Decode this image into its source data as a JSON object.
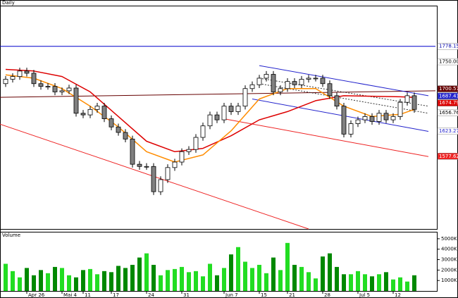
{
  "chart_data": [
    {
      "type": "candlestick",
      "title": "Daily",
      "ylim": [
        1445,
        1851
      ],
      "up_color": "#ffffff",
      "down_color": "#808080",
      "categories": [
        null,
        null,
        null,
        "Apr 26",
        null,
        null,
        null,
        null,
        "Mai 4",
        null,
        null,
        "11",
        null,
        null,
        null,
        "17",
        null,
        null,
        null,
        null,
        "24",
        null,
        null,
        null,
        null,
        "31",
        null,
        null,
        null,
        null,
        null,
        "Jun 7",
        null,
        null,
        null,
        null,
        "15",
        null,
        null,
        null,
        "21",
        null,
        null,
        null,
        null,
        "28",
        null,
        null,
        null,
        null,
        "Jul 5",
        null,
        null,
        null,
        null,
        "12",
        null,
        null,
        null
      ],
      "open": [
        1710,
        1718,
        1723,
        1733,
        1729,
        1710,
        1705,
        1705,
        1695,
        1697,
        1702,
        1656,
        1653,
        1663,
        1669,
        1646,
        1631,
        1621,
        1609,
        1563,
        1559,
        1559,
        1513,
        1535,
        1557,
        1567,
        1586,
        1590,
        1612,
        1633,
        1653,
        1644,
        1669,
        1659,
        1669,
        1701,
        1708,
        1720,
        1727,
        1695,
        1701,
        1714,
        1708,
        1718,
        1720,
        1720,
        1710,
        1688,
        1669,
        1618,
        1637,
        1644,
        1650,
        1641,
        1656,
        1644,
        1650,
        1676,
        1688
      ],
      "high": [
        1724,
        1729,
        1739,
        1739,
        1735,
        1716,
        1711,
        1711,
        1703,
        1708,
        1708,
        1662,
        1669,
        1675,
        1675,
        1652,
        1637,
        1627,
        1615,
        1569,
        1565,
        1565,
        1541,
        1563,
        1573,
        1592,
        1596,
        1618,
        1639,
        1659,
        1659,
        1675,
        1675,
        1675,
        1707,
        1714,
        1726,
        1733,
        1733,
        1707,
        1720,
        1720,
        1724,
        1726,
        1726,
        1726,
        1716,
        1694,
        1675,
        1643,
        1650,
        1656,
        1656,
        1662,
        1662,
        1656,
        1682,
        1694,
        1694
      ],
      "low": [
        1704,
        1712,
        1717,
        1723,
        1704,
        1699,
        1699,
        1689,
        1689,
        1691,
        1650,
        1647,
        1647,
        1657,
        1640,
        1625,
        1615,
        1603,
        1557,
        1553,
        1553,
        1507,
        1507,
        1529,
        1551,
        1561,
        1580,
        1584,
        1606,
        1627,
        1638,
        1638,
        1653,
        1653,
        1663,
        1695,
        1702,
        1714,
        1689,
        1689,
        1695,
        1702,
        1702,
        1712,
        1714,
        1704,
        1682,
        1663,
        1612,
        1612,
        1631,
        1638,
        1635,
        1635,
        1638,
        1638,
        1644,
        1670,
        1657
      ],
      "close": [
        1718,
        1723,
        1733,
        1729,
        1710,
        1705,
        1705,
        1695,
        1697,
        1702,
        1656,
        1653,
        1663,
        1669,
        1646,
        1631,
        1621,
        1609,
        1563,
        1559,
        1559,
        1513,
        1535,
        1557,
        1567,
        1586,
        1590,
        1612,
        1633,
        1653,
        1644,
        1669,
        1659,
        1669,
        1701,
        1708,
        1720,
        1727,
        1695,
        1701,
        1714,
        1708,
        1718,
        1720,
        1720,
        1710,
        1688,
        1669,
        1618,
        1637,
        1644,
        1650,
        1641,
        1656,
        1644,
        1650,
        1676,
        1688,
        1663
      ],
      "series": [
        {
          "color": "#dd0000",
          "x": [
            0,
            4,
            8,
            12,
            16,
            20,
            24,
            28,
            32,
            36,
            40,
            44,
            48,
            52,
            56,
            58
          ],
          "values": [
            1736,
            1733,
            1723,
            1695,
            1650,
            1605,
            1586,
            1592,
            1615,
            1644,
            1659,
            1679,
            1688,
            1687,
            1686,
            1685
          ]
        },
        {
          "color": "#ff8c00",
          "x": [
            0,
            4,
            8,
            12,
            16,
            20,
            24,
            28,
            32,
            36,
            40,
            44,
            48,
            52,
            56,
            58
          ],
          "values": [
            1726,
            1720,
            1701,
            1669,
            1631,
            1586,
            1567,
            1580,
            1624,
            1682,
            1701,
            1701,
            1669,
            1650,
            1654,
            1663
          ]
        }
      ],
      "lines": [
        {
          "color": "#0000cc",
          "x": [
            -1,
            61
          ],
          "values": [
            1778.15,
            1778.15
          ]
        },
        {
          "color": "#660000",
          "x": [
            -1,
            61
          ],
          "values": [
            1685,
            1697
          ]
        },
        {
          "color": "#ee2222",
          "x": [
            -1,
            43
          ],
          "values": [
            1637,
            1445
          ]
        },
        {
          "color": "#ee2222",
          "x": [
            31,
            60
          ],
          "values": [
            1646,
            1577
          ]
        },
        {
          "color": "#2222cc",
          "x": [
            36,
            60
          ],
          "values": [
            1743,
            1688
          ]
        },
        {
          "color": "#2222cc",
          "x": [
            35,
            60
          ],
          "values": [
            1682,
            1623
          ]
        },
        {
          "color": "#333333",
          "dash": true,
          "x": [
            36,
            60
          ],
          "values": [
            1720,
            1669
          ]
        },
        {
          "color": "#333333",
          "dash": true,
          "x": [
            36,
            60
          ],
          "values": [
            1710,
            1656
          ]
        }
      ],
      "price_labels": [
        {
          "value": 1778.15,
          "label": "1778.1500",
          "color": "#0000aa",
          "bg": "#ffffff"
        },
        {
          "value": 1750,
          "label": "1750.00",
          "color": "#000000",
          "bg": "#ffffff"
        },
        {
          "value": 1700.57,
          "label": "1700.57",
          "color": "#ffffff",
          "bg": "#660000"
        },
        {
          "value": 1687.41,
          "label": "1687.41",
          "color": "#ffffff",
          "bg": "#2222cc"
        },
        {
          "value": 1674.79,
          "label": "1674.79",
          "color": "#ffffff",
          "bg": "#dd0000"
        },
        {
          "value": 1656.76,
          "label": "1656.76",
          "color": "#000000",
          "bg": "#ffffff"
        },
        {
          "value": 1623.27,
          "label": "1623.27",
          "color": "#2222cc",
          "bg": "#ffffff"
        },
        {
          "value": 1577.62,
          "label": "1577.62",
          "color": "#ffffff",
          "bg": "#ee2222"
        }
      ]
    },
    {
      "type": "bar",
      "title": "Volume",
      "ylim": [
        0,
        5600
      ],
      "up_color": "#22dd22",
      "down_color": "#008800",
      "yticks": [
        {
          "value": 5000,
          "label": "5000K"
        },
        {
          "value": 4000,
          "label": "4000K"
        },
        {
          "value": 3000,
          "label": "3000K"
        },
        {
          "value": 2000,
          "label": "2000K"
        },
        {
          "value": 1000,
          "label": "1000K"
        }
      ],
      "values": [
        2600,
        1900,
        1300,
        2200,
        1500,
        2000,
        1700,
        2300,
        2200,
        1500,
        1300,
        2000,
        2100,
        1600,
        1900,
        1800,
        2400,
        2200,
        2500,
        3200,
        3600,
        2500,
        1500,
        2000,
        2100,
        2300,
        1800,
        1900,
        1400,
        2600,
        1500,
        2200,
        3500,
        4200,
        2800,
        2200,
        2500,
        1700,
        3200,
        2000,
        4600,
        2500,
        2300,
        1800,
        1200,
        3300,
        3600,
        2300,
        1600,
        1600,
        1900,
        1600,
        1400,
        1600,
        1800,
        1100,
        1300,
        900,
        1500
      ]
    }
  ]
}
